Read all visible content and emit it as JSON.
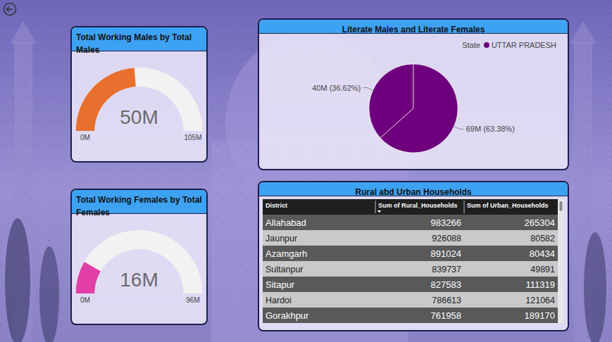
{
  "chart_data": [
    {
      "type": "gauge",
      "title": "Total Working Males by Total Males",
      "values": [
        50
      ],
      "value_labels": [
        "50M"
      ],
      "ylim": [
        0,
        105
      ],
      "yticks": [
        {
          "value": 0,
          "label": "0M"
        },
        {
          "value": 105,
          "label": "105M"
        }
      ],
      "color": "#e8702e"
    },
    {
      "type": "gauge",
      "title": "Total Working Females by Total Females",
      "values": [
        16
      ],
      "value_labels": [
        "16M"
      ],
      "ylim": [
        0,
        96
      ],
      "yticks": [
        {
          "value": 0,
          "label": "0M"
        },
        {
          "value": 96,
          "label": "96M"
        }
      ],
      "color": "#e23fa6"
    },
    {
      "type": "pie",
      "title": "Literate Males and Literate Females",
      "legend_title": "State",
      "legend": "top-right",
      "data_labels": true,
      "series": [
        {
          "name": "UTTAR PRADESH",
          "color": "#6e007d",
          "values": [
            36.62,
            63.38
          ],
          "value_labels": [
            "40M (36.62%)",
            "69M (63.38%)"
          ]
        }
      ]
    },
    {
      "type": "table",
      "title": "Rural abd Urban Households",
      "columns": [
        "District",
        "Sum of Rural_Households",
        "Sum of Urban_Households"
      ],
      "rows": [
        [
          "Allahabad",
          983266,
          265304
        ],
        [
          "Jaunpur",
          926088,
          80582
        ],
        [
          "Azamgarh",
          891024,
          80434
        ],
        [
          "Sultanpur",
          839737,
          49891
        ],
        [
          "Sitapur",
          827583,
          111319
        ],
        [
          "Hardoi",
          786613,
          121064
        ],
        [
          "Gorakhpur",
          761958,
          189170
        ]
      ]
    }
  ]
}
